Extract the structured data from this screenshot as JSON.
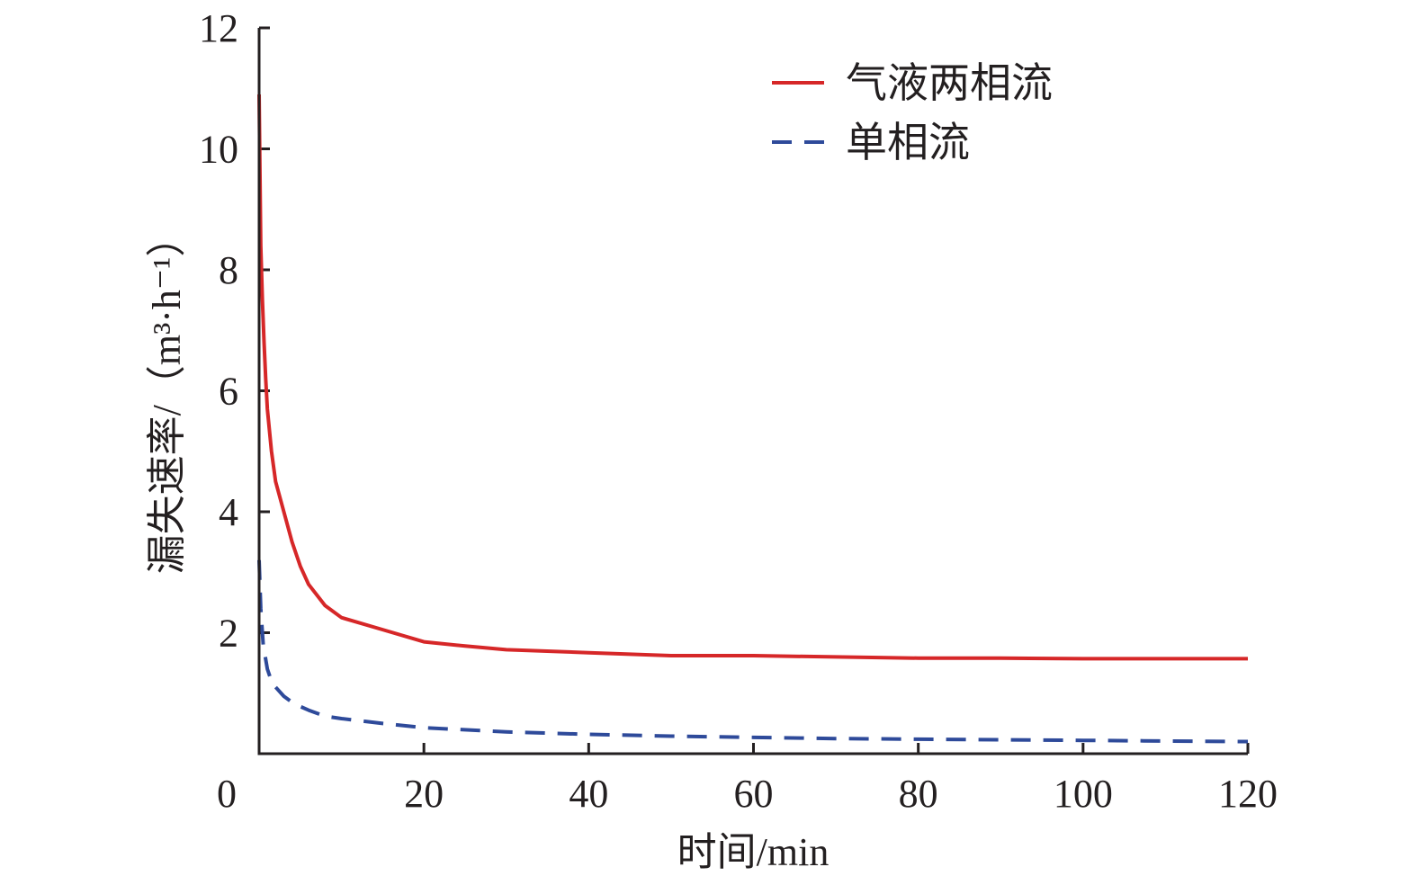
{
  "chart_data": {
    "type": "line",
    "title": "",
    "xlabel": "时间/min",
    "ylabel": "漏失速率/（m³·h⁻¹）",
    "xlim": [
      0,
      120
    ],
    "ylim": [
      0,
      12
    ],
    "x_ticks": [
      0,
      20,
      40,
      60,
      80,
      100,
      120
    ],
    "y_ticks": [
      2,
      4,
      6,
      8,
      10,
      12
    ],
    "grid": false,
    "legend_position": "top-right",
    "series": [
      {
        "name": "气液两相流",
        "color": "#d62728",
        "style": "solid",
        "x": [
          0,
          0.2,
          0.4,
          0.6,
          0.8,
          1,
          1.5,
          2,
          3,
          4,
          5,
          6,
          8,
          10,
          15,
          20,
          25,
          30,
          40,
          50,
          60,
          70,
          80,
          90,
          100,
          110,
          120
        ],
        "y": [
          10.9,
          8.4,
          7.5,
          6.8,
          6.2,
          5.7,
          5.0,
          4.5,
          4.0,
          3.5,
          3.1,
          2.8,
          2.45,
          2.25,
          2.05,
          1.85,
          1.78,
          1.72,
          1.67,
          1.62,
          1.62,
          1.6,
          1.58,
          1.58,
          1.57,
          1.57,
          1.57
        ]
      },
      {
        "name": "单相流",
        "color": "#2e4a9a",
        "style": "dashed",
        "x": [
          0,
          0.2,
          0.5,
          1,
          1.5,
          2,
          3,
          4,
          5,
          6,
          8,
          10,
          15,
          20,
          30,
          40,
          50,
          60,
          70,
          80,
          90,
          100,
          110,
          120
        ],
        "y": [
          3.2,
          2.4,
          1.8,
          1.4,
          1.2,
          1.1,
          0.95,
          0.85,
          0.78,
          0.72,
          0.62,
          0.58,
          0.5,
          0.43,
          0.36,
          0.32,
          0.29,
          0.27,
          0.25,
          0.24,
          0.23,
          0.22,
          0.21,
          0.2
        ]
      }
    ]
  }
}
